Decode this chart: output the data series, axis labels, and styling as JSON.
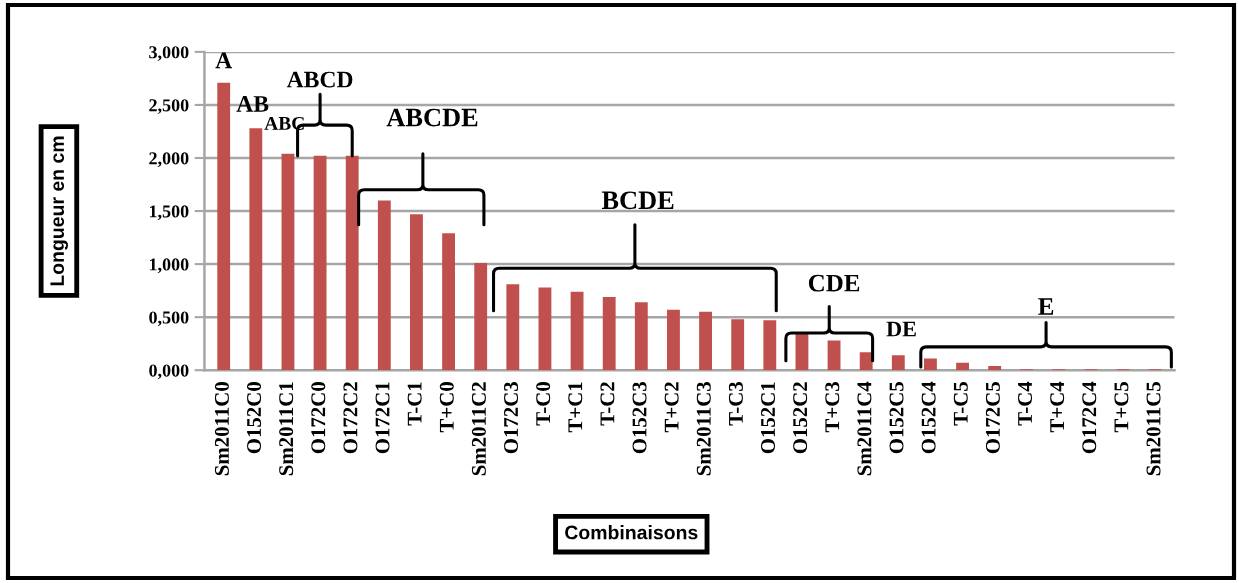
{
  "chart_data": {
    "type": "bar",
    "ylabel": "Longueur en cm",
    "xlabel": "Combinaisons",
    "categories": [
      "Sm2011C0",
      "O152C0",
      "Sm2011C1",
      "O172C0",
      "O172C2",
      "O172C1",
      "T-C1",
      "T+C0",
      "Sm2011C2",
      "O172C3",
      "T-C0",
      "T+C1",
      "T-C2",
      "O152C3",
      "T+C2",
      "Sm2011C3",
      "T-C3",
      "O152C1",
      "O152C2",
      "T+C3",
      "Sm2011C4",
      "O152C5",
      "O152C4",
      "T-C5",
      "O172C5",
      "T-C4",
      "T+C4",
      "O172C4",
      "T+C5",
      "Sm2011C5"
    ],
    "values": [
      2.71,
      2.28,
      2.04,
      2.02,
      2.02,
      1.6,
      1.47,
      1.29,
      1.01,
      0.81,
      0.78,
      0.74,
      0.69,
      0.64,
      0.57,
      0.55,
      0.48,
      0.47,
      0.36,
      0.28,
      0.17,
      0.14,
      0.11,
      0.07,
      0.04,
      0.01,
      0.01,
      0.01,
      0.01,
      0.01
    ],
    "color": "#c0504d",
    "ylim": [
      0,
      3
    ],
    "yticks": [
      {
        "value": 0,
        "label": "0,000"
      },
      {
        "value": 0.5,
        "label": "0,500"
      },
      {
        "value": 1,
        "label": "1,000"
      },
      {
        "value": 1.5,
        "label": "1,500"
      },
      {
        "value": 2,
        "label": "2,000"
      },
      {
        "value": 2.5,
        "label": "2,500"
      },
      {
        "value": 3,
        "label": "3,000"
      }
    ],
    "grid": "y",
    "annotations": [
      "A",
      "AB",
      "ABC",
      "ABCD",
      "ABCDE",
      "BCDE",
      "CDE",
      "DE",
      "E"
    ]
  }
}
